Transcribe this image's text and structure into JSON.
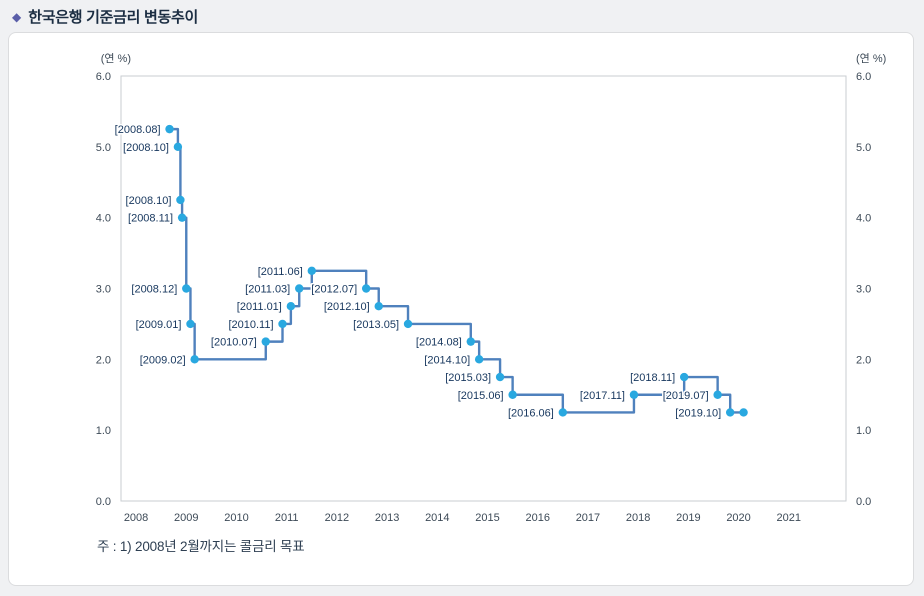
{
  "page": {
    "title_bullet": "◆",
    "title": "한국은행 기준금리 변동추이",
    "note": "주 : 1) 2008년 2월까지는 콜금리 목표",
    "accent_color": "#5a5ea8"
  },
  "chart_data": {
    "type": "line",
    "style": "step",
    "title": "한국은행 기준금리 변동추이",
    "ylabel_left": "(연 %)",
    "ylabel_right": "(연 %)",
    "ylim": [
      0.0,
      6.0
    ],
    "y_ticks": [
      6.0,
      5.0,
      4.0,
      3.0,
      2.0,
      1.0,
      0.0
    ],
    "x_ticks": [
      2008,
      2009,
      2010,
      2011,
      2012,
      2013,
      2014,
      2015,
      2016,
      2017,
      2018,
      2019,
      2020,
      2021
    ],
    "xlim": [
      2007.7,
      2022.14
    ],
    "points": [
      {
        "label": "[2008.08]",
        "date": "2008.08",
        "rate": 5.25
      },
      {
        "label": "[2008.10]",
        "date": "2008.10",
        "rate": 5.0
      },
      {
        "label": "[2008.10]",
        "date": "2008.10",
        "rate": 4.25
      },
      {
        "label": "[2008.11]",
        "date": "2008.11",
        "rate": 4.0
      },
      {
        "label": "[2008.12]",
        "date": "2008.12",
        "rate": 3.0
      },
      {
        "label": "[2009.01]",
        "date": "2009.01",
        "rate": 2.5
      },
      {
        "label": "[2009.02]",
        "date": "2009.02",
        "rate": 2.0
      },
      {
        "label": "[2010.07]",
        "date": "2010.07",
        "rate": 2.25
      },
      {
        "label": "[2010.11]",
        "date": "2010.11",
        "rate": 2.5
      },
      {
        "label": "[2011.01]",
        "date": "2011.01",
        "rate": 2.75
      },
      {
        "label": "[2011.03]",
        "date": "2011.03",
        "rate": 3.0
      },
      {
        "label": "[2011.06]",
        "date": "2011.06",
        "rate": 3.25
      },
      {
        "label": "[2012.07]",
        "date": "2012.07",
        "rate": 3.0
      },
      {
        "label": "[2012.10]",
        "date": "2012.10",
        "rate": 2.75
      },
      {
        "label": "[2013.05]",
        "date": "2013.05",
        "rate": 2.5
      },
      {
        "label": "[2014.08]",
        "date": "2014.08",
        "rate": 2.25
      },
      {
        "label": "[2014.10]",
        "date": "2014.10",
        "rate": 2.0
      },
      {
        "label": "[2015.03]",
        "date": "2015.03",
        "rate": 1.75
      },
      {
        "label": "[2015.06]",
        "date": "2015.06",
        "rate": 1.5
      },
      {
        "label": "[2016.06]",
        "date": "2016.06",
        "rate": 1.25
      },
      {
        "label": "[2017.11]",
        "date": "2017.11",
        "rate": 1.5
      },
      {
        "label": "[2018.11]",
        "date": "2018.11",
        "rate": 1.75
      },
      {
        "label": "[2019.07]",
        "date": "2019.07",
        "rate": 1.5
      },
      {
        "label": "[2019.10]",
        "date": "2019.10",
        "rate": 1.25
      }
    ],
    "line_end": {
      "x": 2020.1,
      "rate": 1.25
    },
    "colors": {
      "line": "#4f81bd",
      "marker": "#29a8e0",
      "point_label": "#17375e",
      "axis_text": "#3d4a57",
      "plot_border": "#c9cdd2"
    }
  }
}
